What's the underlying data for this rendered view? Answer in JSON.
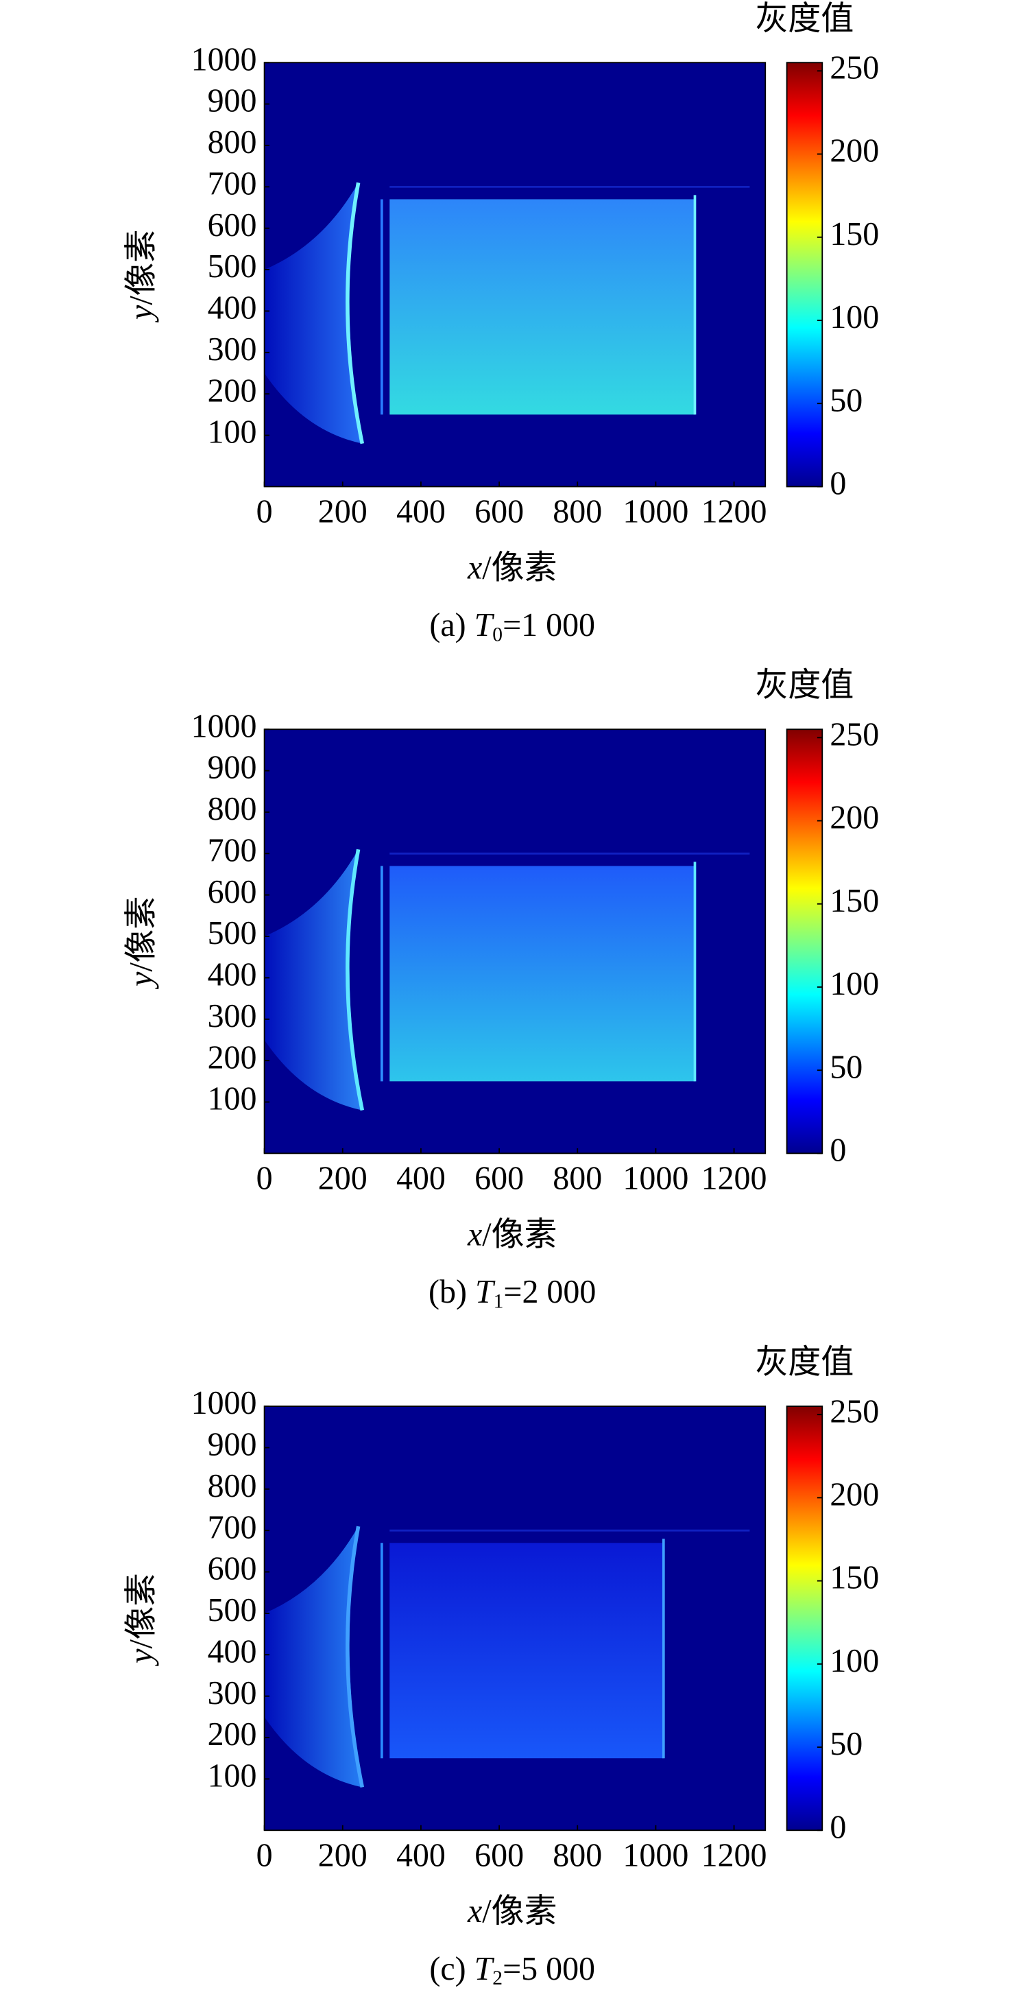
{
  "chart_data": [
    {
      "type": "heatmap",
      "xlabel": {
        "var": "x",
        "text": "/像素"
      },
      "ylabel": {
        "var": "y",
        "text": "/像素"
      },
      "caption": {
        "prefix": "(a) ",
        "var": "T",
        "sub": "0",
        "rest": "=1 000"
      },
      "xlim": [
        0,
        1280
      ],
      "xticks": [
        0,
        200,
        400,
        600,
        800,
        1000,
        1200
      ],
      "ylim": [
        -24,
        1000
      ],
      "yticks": [
        100,
        200,
        300,
        400,
        500,
        600,
        700,
        800,
        900,
        1000
      ],
      "colorbar": {
        "title": "灰度值",
        "lim": [
          0,
          255
        ],
        "ticks": [
          0,
          50,
          100,
          150,
          200,
          250
        ],
        "colormap": "jet"
      }
    },
    {
      "type": "heatmap",
      "xlabel": {
        "var": "x",
        "text": "/像素"
      },
      "ylabel": {
        "var": "y",
        "text": "/像素"
      },
      "caption": {
        "prefix": "(b) ",
        "var": "T",
        "sub": "1",
        "rest": "=2 000"
      },
      "xlim": [
        0,
        1280
      ],
      "xticks": [
        0,
        200,
        400,
        600,
        800,
        1000,
        1200
      ],
      "ylim": [
        -24,
        1000
      ],
      "yticks": [
        100,
        200,
        300,
        400,
        500,
        600,
        700,
        800,
        900,
        1000
      ],
      "colorbar": {
        "title": "灰度值",
        "lim": [
          0,
          255
        ],
        "ticks": [
          0,
          50,
          100,
          150,
          200,
          250
        ],
        "colormap": "jet"
      }
    },
    {
      "type": "heatmap",
      "xlabel": {
        "var": "x",
        "text": "/像素"
      },
      "ylabel": {
        "var": "y",
        "text": "/像素"
      },
      "caption": {
        "prefix": "(c) ",
        "var": "T",
        "sub": "2",
        "rest": "=5 000"
      },
      "xlim": [
        0,
        1280
      ],
      "xticks": [
        0,
        200,
        400,
        600,
        800,
        1000,
        1200
      ],
      "ylim": [
        -24,
        1000
      ],
      "yticks": [
        100,
        200,
        300,
        400,
        500,
        600,
        700,
        800,
        900,
        1000
      ],
      "colorbar": {
        "title": "灰度值",
        "lim": [
          0,
          255
        ],
        "ticks": [
          0,
          50,
          100,
          150,
          200,
          250
        ],
        "colormap": "jet"
      }
    }
  ]
}
